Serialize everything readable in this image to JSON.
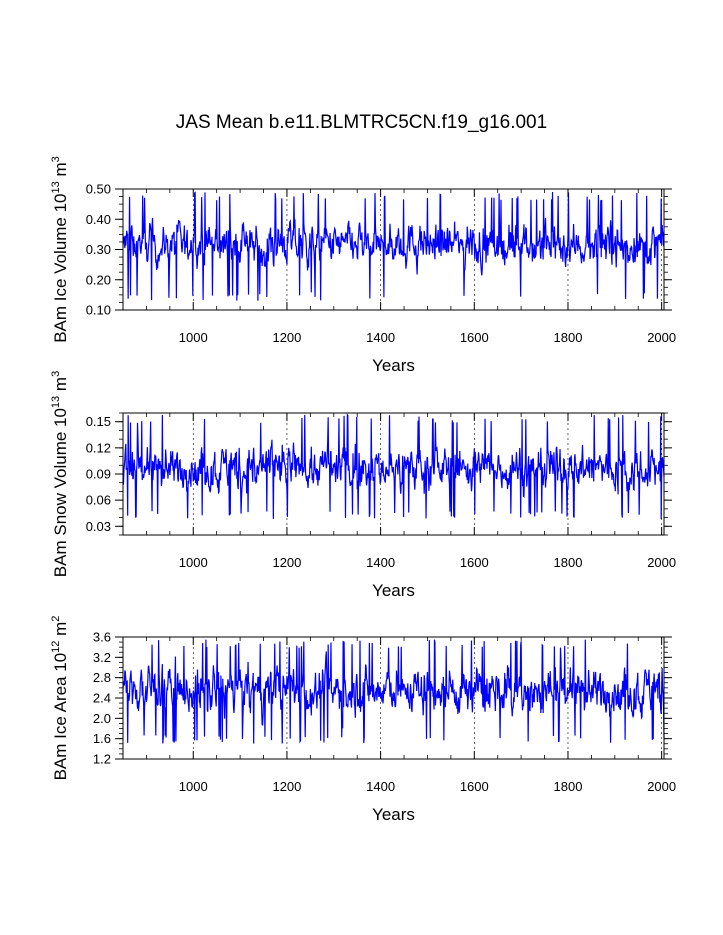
{
  "figure": {
    "title": "JAS Mean b.e11.BLMTRC5CN.f19_g16.001"
  },
  "colors": {
    "series_line": "#0000ff",
    "axis": "#000000",
    "grid": "#000000",
    "background": "#ffffff"
  },
  "chart_data": [
    {
      "type": "line",
      "name": "ice-volume",
      "title": "",
      "ylabel": "BAm Ice Volume 10^13 m^3",
      "ylabel_parts": {
        "prefix": "BAm Ice Volume 10",
        "exp1": "13",
        "mid": " m",
        "exp2": "3"
      },
      "xlabel": "Years",
      "xlim": [
        850,
        2005
      ],
      "ylim": [
        0.1,
        0.5
      ],
      "xticks": [
        1000,
        1200,
        1400,
        1600,
        1800,
        2000
      ],
      "yticks": [
        0.1,
        0.2,
        0.3,
        0.4,
        0.5
      ],
      "ytick_labels": [
        "0.10",
        "0.20",
        "0.30",
        "0.40",
        "0.50"
      ],
      "yminor": 0.025,
      "grid_x": true,
      "series": [
        {
          "name": "JAS mean ice volume",
          "mean": 0.315,
          "amplitude": 0.055,
          "min_shown": 0.13,
          "max_shown": 0.49
        }
      ]
    },
    {
      "type": "line",
      "name": "snow-volume",
      "title": "",
      "ylabel": "BAm Snow Volume 10^13 m^3",
      "ylabel_parts": {
        "prefix": "BAm Snow Volume 10",
        "exp1": "13",
        "mid": " m",
        "exp2": "3"
      },
      "xlabel": "Years",
      "xlim": [
        850,
        2005
      ],
      "ylim": [
        0.02,
        0.16
      ],
      "xticks": [
        1000,
        1200,
        1400,
        1600,
        1800,
        2000
      ],
      "yticks": [
        0.03,
        0.06,
        0.09,
        0.12,
        0.15
      ],
      "ytick_labels": [
        "0.03",
        "0.06",
        "0.09",
        "0.12",
        "0.15"
      ],
      "yminor": 0.01,
      "grid_x": true,
      "series": [
        {
          "name": "JAS mean snow volume",
          "mean": 0.097,
          "amplitude": 0.02,
          "min_shown": 0.038,
          "max_shown": 0.158
        }
      ]
    },
    {
      "type": "line",
      "name": "ice-area",
      "title": "",
      "ylabel": "BAm Ice Area 10^12 m^2",
      "ylabel_parts": {
        "prefix": "BAm Ice Area 10",
        "exp1": "12",
        "mid": " m",
        "exp2": "2"
      },
      "xlabel": "Years",
      "xlim": [
        850,
        2005
      ],
      "ylim": [
        1.2,
        3.6
      ],
      "xticks": [
        1000,
        1200,
        1400,
        1600,
        1800,
        2000
      ],
      "yticks": [
        1.2,
        1.6,
        2.0,
        2.4,
        2.8,
        3.2,
        3.6
      ],
      "ytick_labels": [
        "1.2",
        "1.6",
        "2.0",
        "2.4",
        "2.8",
        "3.2",
        "3.6"
      ],
      "yminor": 0.1,
      "grid_x": true,
      "series": [
        {
          "name": "JAS mean ice area",
          "mean": 2.55,
          "amplitude": 0.38,
          "min_shown": 1.5,
          "max_shown": 3.55
        }
      ]
    }
  ]
}
